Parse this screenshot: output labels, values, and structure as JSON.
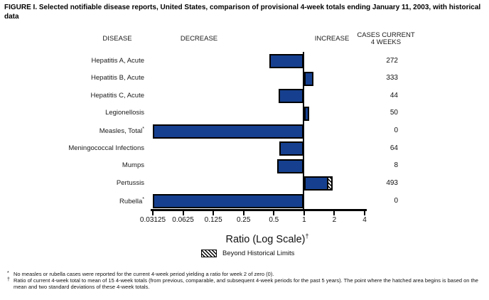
{
  "title": "FIGURE I. Selected notifiable disease reports, United States, comparison of provisional 4-week totals ending January 11, 2003, with historical data",
  "headers": {
    "disease": "DISEASE",
    "decrease": "DECREASE",
    "increase": "INCREASE",
    "cases_line1": "CASES CURRENT",
    "cases_line2": "4 WEEKS"
  },
  "chart_data": {
    "type": "bar",
    "orientation": "horizontal",
    "x_scale": "log2",
    "baseline": 1,
    "xlabel": "Ratio (Log Scale)",
    "xlabel_sup": "†",
    "xlim": [
      0.03125,
      4
    ],
    "x_ticks": [
      0.03125,
      0.0625,
      0.125,
      0.25,
      0.5,
      1,
      2,
      4
    ],
    "x_tick_labels": [
      "0.03125",
      "0.0625",
      "0.125",
      "0.25",
      "0.5",
      "1",
      "2",
      "4"
    ],
    "legend": {
      "swatch": "hatched",
      "label": "Beyond Historical Limits"
    },
    "bar_color": "#16408F",
    "rows": [
      {
        "disease": "Hepatitis A, Acute",
        "sup": "",
        "ratio": 0.45,
        "cases": 272,
        "beyond_historical_limits": false
      },
      {
        "disease": "Hepatitis B, Acute",
        "sup": "",
        "ratio": 1.24,
        "cases": 333,
        "beyond_historical_limits": false
      },
      {
        "disease": "Hepatitis C, Acute",
        "sup": "",
        "ratio": 0.56,
        "cases": 44,
        "beyond_historical_limits": false
      },
      {
        "disease": "Legionellosis",
        "sup": "",
        "ratio": 1.12,
        "cases": 50,
        "beyond_historical_limits": false
      },
      {
        "disease": "Measles, Total",
        "sup": "*",
        "ratio": 0,
        "bar_extent": 0.03125,
        "cases": 0,
        "beyond_historical_limits": false
      },
      {
        "disease": "Meningococcal Infections",
        "sup": "",
        "ratio": 0.57,
        "cases": 64,
        "beyond_historical_limits": false
      },
      {
        "disease": "Mumps",
        "sup": "",
        "ratio": 0.54,
        "cases": 8,
        "beyond_historical_limits": false
      },
      {
        "disease": "Pertussis",
        "sup": "",
        "ratio": 1.93,
        "hatch_start": 1.75,
        "cases": 493,
        "beyond_historical_limits": true
      },
      {
        "disease": "Rubella",
        "sup": "*",
        "ratio": 0,
        "bar_extent": 0.03125,
        "cases": 0,
        "beyond_historical_limits": false
      }
    ]
  },
  "footnotes": [
    {
      "marker": "*",
      "text": "No measles or rubella cases were reported for the current 4-week period yielding a ratio for week 2 of zero (0)."
    },
    {
      "marker": "†",
      "text": "Ratio of current 4-week total to mean of 15 4-week totals (from previous, comparable, and subsequent 4-week periods for the past 5 years). The point where the hatched area begins is based on the mean and two standard deviations of these 4-week totals."
    }
  ]
}
